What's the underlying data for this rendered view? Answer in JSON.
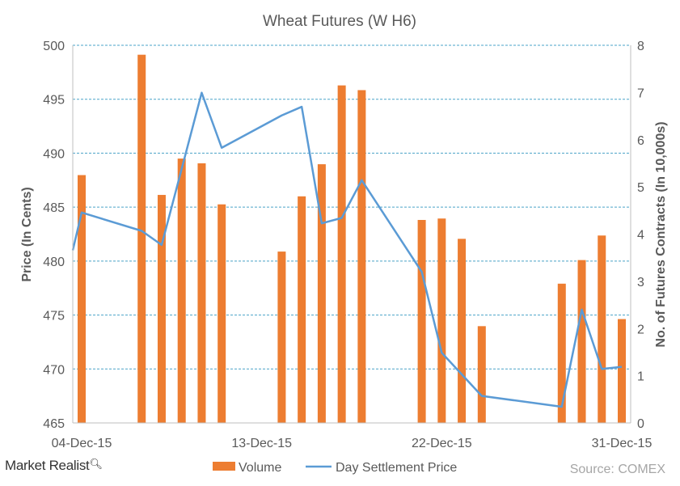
{
  "chart_data": {
    "type": "bar+line",
    "title": "Wheat Futures  (W H6)",
    "ylabel_left": "Price (In Cents)",
    "ylabel_right": "No. of Futures Contracts (In 10,000s)",
    "x_range": [
      "2015-12-04",
      "2015-12-31"
    ],
    "x_ticks": [
      {
        "date": "2015-12-04",
        "label": "04-Dec-15"
      },
      {
        "date": "2015-12-13",
        "label": "13-Dec-15"
      },
      {
        "date": "2015-12-22",
        "label": "22-Dec-15"
      },
      {
        "date": "2015-12-31",
        "label": "31-Dec-15"
      }
    ],
    "ylim_left": [
      465,
      500
    ],
    "yticks_left": [
      "465",
      "470",
      "475",
      "480",
      "485",
      "490",
      "495",
      "500"
    ],
    "ylim_right": [
      0,
      8
    ],
    "yticks_right": [
      "0",
      "1",
      "2",
      "3",
      "4",
      "5",
      "6",
      "7",
      "8"
    ],
    "grid": "horizontal dashed",
    "legend_position": "bottom",
    "series": [
      {
        "name": "Volume",
        "type": "bar",
        "axis": "right",
        "color": "#ED7D31",
        "points": [
          {
            "date": "2015-12-04",
            "value": 5.25
          },
          {
            "date": "2015-12-07",
            "value": 7.8
          },
          {
            "date": "2015-12-08",
            "value": 4.83
          },
          {
            "date": "2015-12-09",
            "value": 5.6
          },
          {
            "date": "2015-12-10",
            "value": 5.5
          },
          {
            "date": "2015-12-11",
            "value": 4.63
          },
          {
            "date": "2015-12-14",
            "value": 3.63
          },
          {
            "date": "2015-12-15",
            "value": 4.8
          },
          {
            "date": "2015-12-16",
            "value": 5.48
          },
          {
            "date": "2015-12-17",
            "value": 7.15
          },
          {
            "date": "2015-12-18",
            "value": 7.05
          },
          {
            "date": "2015-12-21",
            "value": 4.3
          },
          {
            "date": "2015-12-22",
            "value": 4.33
          },
          {
            "date": "2015-12-23",
            "value": 3.9
          },
          {
            "date": "2015-12-24",
            "value": 2.05
          },
          {
            "date": "2015-12-28",
            "value": 2.95
          },
          {
            "date": "2015-12-29",
            "value": 3.45
          },
          {
            "date": "2015-12-30",
            "value": 3.97
          },
          {
            "date": "2015-12-31",
            "value": 2.2
          }
        ]
      },
      {
        "name": "Day Settlement Price",
        "type": "line",
        "axis": "left",
        "color": "#5B9BD5",
        "points": [
          {
            "date": "2015-12-04",
            "value": 484.5
          },
          {
            "date": "2015-12-07",
            "value": 482.8
          },
          {
            "date": "2015-12-08",
            "value": 481.5
          },
          {
            "date": "2015-12-10",
            "value": 495.6
          },
          {
            "date": "2015-12-11",
            "value": 490.5
          },
          {
            "date": "2015-12-14",
            "value": 493.5
          },
          {
            "date": "2015-12-15",
            "value": 494.3
          },
          {
            "date": "2015-12-16",
            "value": 483.5
          },
          {
            "date": "2015-12-17",
            "value": 484.0
          },
          {
            "date": "2015-12-18",
            "value": 487.5
          },
          {
            "date": "2015-12-21",
            "value": 479.0
          },
          {
            "date": "2015-12-22",
            "value": 471.5
          },
          {
            "date": "2015-12-24",
            "value": 467.5
          },
          {
            "date": "2015-12-28",
            "value": 466.5
          },
          {
            "date": "2015-12-29",
            "value": 475.5
          },
          {
            "date": "2015-12-30",
            "value": 470.0
          },
          {
            "date": "2015-12-31",
            "value": 470.2
          }
        ]
      }
    ]
  },
  "footer": {
    "brand": "Market Realist",
    "source": "Source: COMEX"
  }
}
